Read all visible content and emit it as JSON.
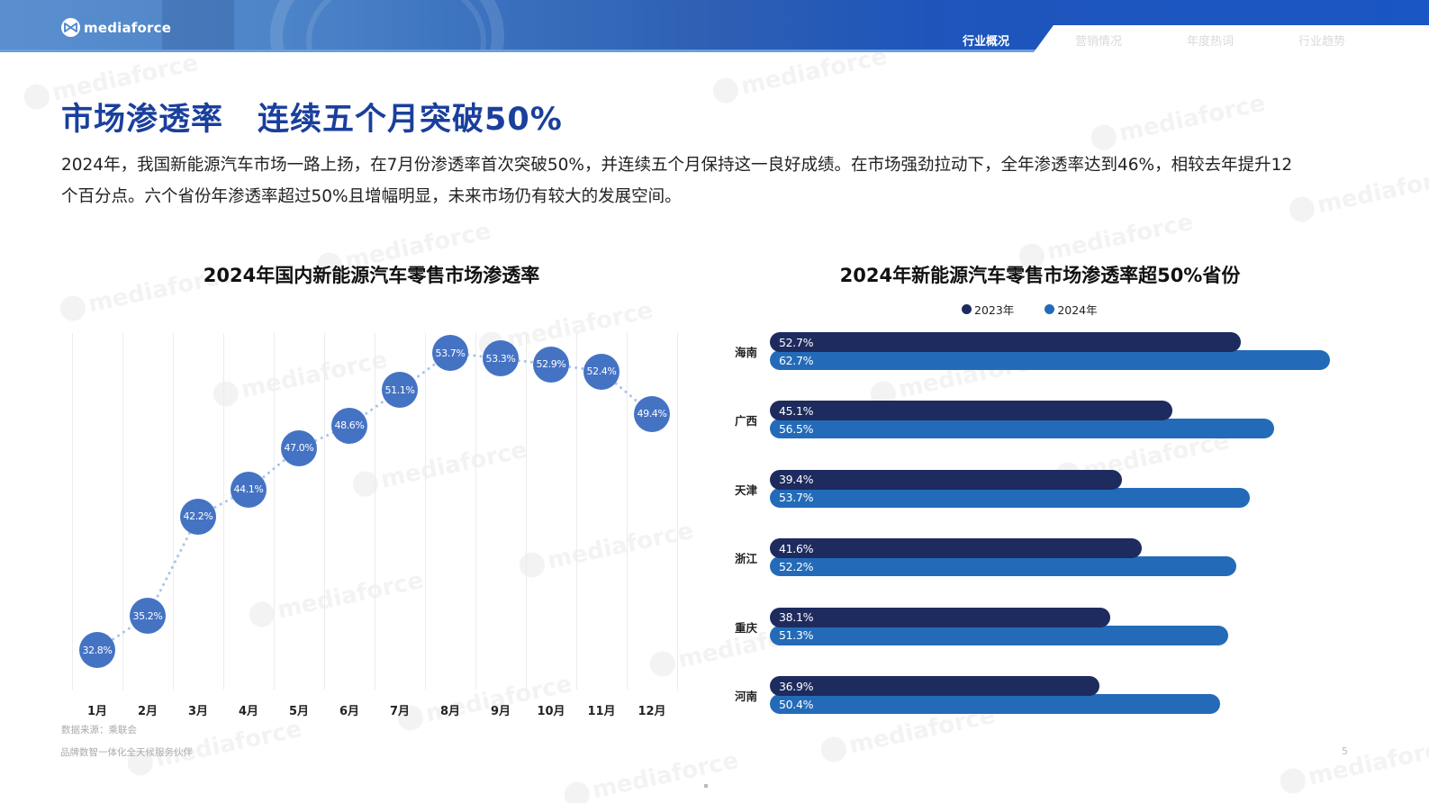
{
  "header": {
    "logo_text": "mediaforce",
    "nav": [
      {
        "label": "行业概况",
        "active": true
      },
      {
        "label": "营销情况",
        "active": false
      },
      {
        "label": "年度热词",
        "active": false
      },
      {
        "label": "行业趋势",
        "active": false
      }
    ]
  },
  "page": {
    "title_part1": "市场渗透率",
    "title_part2": "连续五个月突破50%",
    "description_line1": "2024年，我国新能源汽车市场一路上扬，在7月份渗透率首次突破50%，并连续五个月保持这一良好成绩。在市场强劲拉动下，全年渗透率达到46%，相较去年提升12",
    "description_line2": "个百分点。六个省份年渗透率超过50%且增幅明显，未来市场仍有较大的发展空间。",
    "source": "数据来源：乘联会",
    "tagline": "品牌数智一体化全天候服务伙伴",
    "page_number": "5",
    "watermark_text": "mediaforce"
  },
  "colors": {
    "title_blue": "#1a3f9c",
    "bubble_blue": "#4573c4",
    "dotted_line": "#a9c4e8",
    "bar_2023": "#1e2b5e",
    "bar_2024": "#236bb8"
  },
  "chart_data": [
    {
      "type": "line",
      "title": "2024年国内新能源汽车零售市场渗透率",
      "categories": [
        "1月",
        "2月",
        "3月",
        "4月",
        "5月",
        "6月",
        "7月",
        "8月",
        "9月",
        "10月",
        "11月",
        "12月"
      ],
      "values": [
        32.8,
        35.2,
        42.2,
        44.1,
        47.0,
        48.6,
        51.1,
        53.7,
        53.3,
        52.9,
        52.4,
        49.4
      ],
      "labels": [
        "32.8%",
        "35.2%",
        "42.2%",
        "44.1%",
        "47.0%",
        "48.6%",
        "51.1%",
        "53.7%",
        "53.3%",
        "52.9%",
        "52.4%",
        "49.4%"
      ],
      "xlabel": "",
      "ylabel": "",
      "grid": "vertical",
      "line_style": "dotted",
      "markers": "circle-with-label"
    },
    {
      "type": "bar",
      "orientation": "horizontal",
      "title": "2024年新能源汽车零售市场渗透率超50%省份",
      "legend": [
        "2023年",
        "2024年"
      ],
      "legend_position": "top",
      "categories": [
        "海南",
        "广西",
        "天津",
        "浙江",
        "重庆",
        "河南"
      ],
      "series": [
        {
          "name": "2023年",
          "values": [
            52.7,
            45.1,
            39.4,
            41.6,
            38.1,
            36.9
          ],
          "labels": [
            "52.7%",
            "45.1%",
            "39.4%",
            "41.6%",
            "38.1%",
            "36.9%"
          ]
        },
        {
          "name": "2024年",
          "values": [
            62.7,
            56.5,
            53.7,
            52.2,
            51.3,
            50.4
          ],
          "labels": [
            "62.7%",
            "56.5%",
            "53.7%",
            "52.2%",
            "51.3%",
            "50.4%"
          ]
        }
      ]
    }
  ]
}
